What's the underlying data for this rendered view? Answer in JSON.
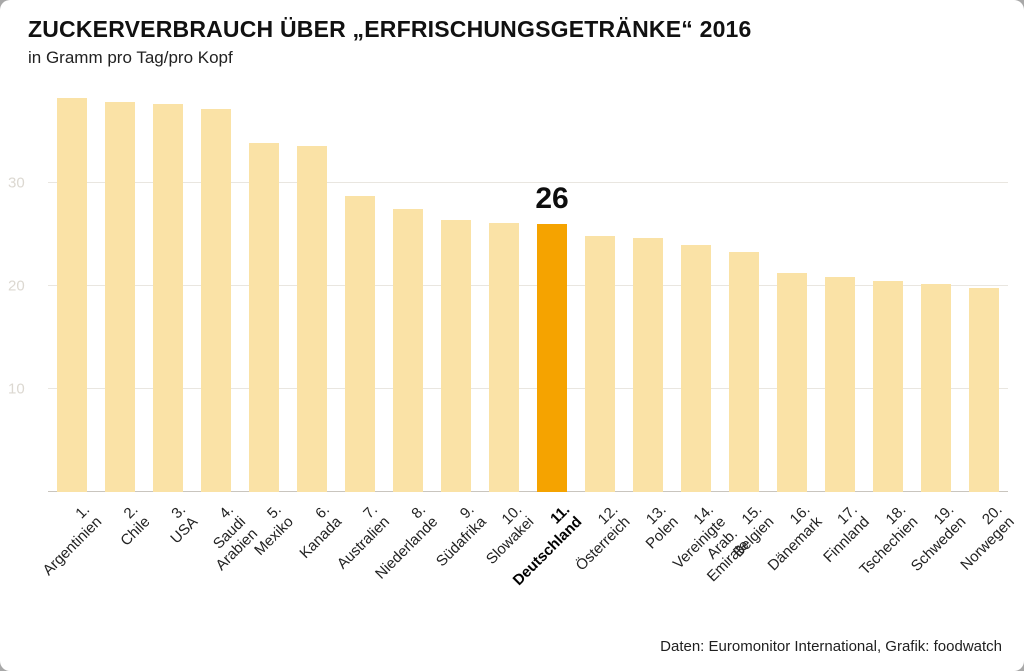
{
  "title": "ZUCKERVERBRAUCH ÜBER „ERFRISCHUNGSGETRÄNKE“ 2016",
  "subtitle": "in Gramm pro Tag/pro Kopf",
  "footer": "Daten: Euromonitor International, Grafik: foodwatch",
  "colors": {
    "bar": "#fae2a6",
    "highlight": "#f5a300",
    "grid": "#e9e6e0",
    "axis": "#c9c5be",
    "ytick_text": "#dcd8d1"
  },
  "chart_data": {
    "type": "bar",
    "title": "ZUCKERVERBRAUCH ÜBER „ERFRISCHUNGSGETRÄNKE“ 2016",
    "subtitle": "in Gramm pro Tag/pro Kopf",
    "xlabel": "",
    "ylabel": "in Gramm pro Tag/pro Kopf",
    "ylim": [
      0,
      38.8
    ],
    "yticks": [
      10,
      20,
      30
    ],
    "grid": true,
    "legend": false,
    "categories": [
      "1. Argentinien",
      "2. Chile",
      "3. USA",
      "4. Saudi Arabien",
      "5. Mexiko",
      "6. Kanada",
      "7. Australien",
      "8. Niederlande",
      "9. Südafrika",
      "10. Slowakei",
      "11. Deutschland",
      "12. Österreich",
      "13. Polen",
      "14. Vereinigte\nArab. Emirate",
      "15. Belgien",
      "16. Dänemark",
      "17. Finnland",
      "18. Tschechien",
      "19. Schweden",
      "20. Norwegen"
    ],
    "values": [
      38.2,
      37.8,
      37.6,
      37.2,
      33.9,
      33.6,
      28.7,
      27.5,
      26.4,
      26.1,
      26,
      24.8,
      24.6,
      24.0,
      23.3,
      21.2,
      20.9,
      20.5,
      20.2,
      19.8
    ],
    "highlight_index": 10,
    "annotation": {
      "index": 10,
      "text": "26"
    }
  }
}
